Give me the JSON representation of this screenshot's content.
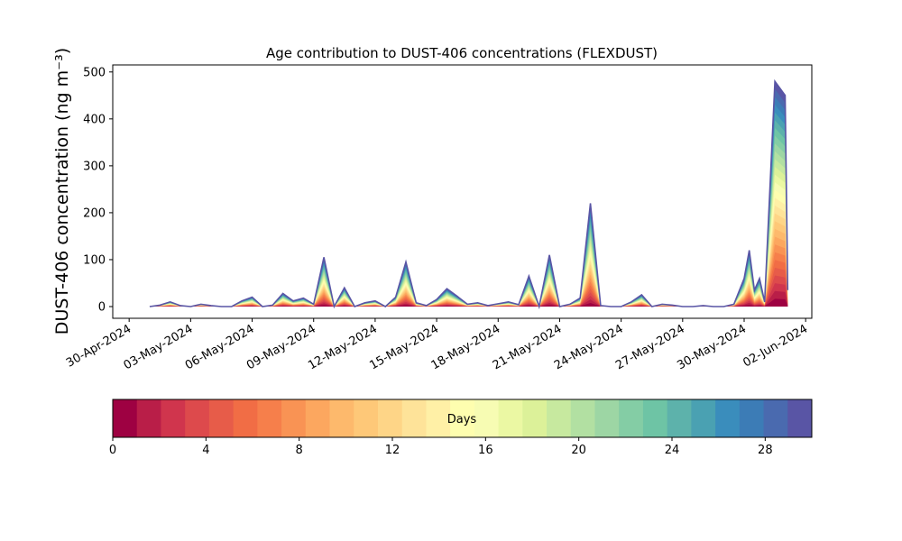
{
  "chart_data": {
    "type": "area",
    "title": "Age contribution to DUST-406 concentrations (FLEXDUST)",
    "ylabel": "DUST-406 concentration (ng m⁻³)",
    "xlabel": "",
    "xlim": [
      "2024-04-30",
      "2024-06-02"
    ],
    "ylim": [
      -25,
      515
    ],
    "x_tick_labels": [
      "30-Apr-2024",
      "03-May-2024",
      "06-May-2024",
      "09-May-2024",
      "12-May-2024",
      "15-May-2024",
      "18-May-2024",
      "21-May-2024",
      "24-May-2024",
      "27-May-2024",
      "30-May-2024",
      "02-Jun-2024"
    ],
    "y_ticks": [
      0,
      100,
      200,
      300,
      400,
      500
    ],
    "grid": false,
    "series_note_colorbar": "Days",
    "colorbar": {
      "label": "Days",
      "range": [
        0,
        30
      ],
      "ticks": [
        0,
        4,
        8,
        12,
        16,
        20,
        24,
        28
      ],
      "colors": [
        "#9e0142",
        "#b91e48",
        "#d0354d",
        "#dd4a4c",
        "#e75c49",
        "#f16d45",
        "#f67f4b",
        "#f99354",
        "#fca75f",
        "#fdb96c",
        "#fec878",
        "#fed587",
        "#fee399",
        "#fff0a6",
        "#fefeaf",
        "#f7fcb3",
        "#ebf8a3",
        "#dcf199",
        "#c7e99f",
        "#b2e0a2",
        "#9dd6a4",
        "#84cda5",
        "#6ec4a5",
        "#5db2ab",
        "#4aa1b2",
        "#3a8dbc",
        "#3c7cb6",
        "#4a6aaf",
        "#5955a5"
      ]
    },
    "x": [
      "2024-05-01",
      "2024-05-01 12:00",
      "2024-05-02",
      "2024-05-02 12:00",
      "2024-05-03",
      "2024-05-03 12:00",
      "2024-05-04",
      "2024-05-04 12:00",
      "2024-05-05",
      "2024-05-05 12:00",
      "2024-05-06",
      "2024-05-06 12:00",
      "2024-05-07",
      "2024-05-07 12:00",
      "2024-05-08",
      "2024-05-08 12:00",
      "2024-05-09",
      "2024-05-09 12:00",
      "2024-05-10",
      "2024-05-10 12:00",
      "2024-05-11",
      "2024-05-11 12:00",
      "2024-05-12",
      "2024-05-12 12:00",
      "2024-05-13",
      "2024-05-13 12:00",
      "2024-05-14",
      "2024-05-14 12:00",
      "2024-05-15",
      "2024-05-15 12:00",
      "2024-05-16",
      "2024-05-16 12:00",
      "2024-05-17",
      "2024-05-17 12:00",
      "2024-05-18",
      "2024-05-18 12:00",
      "2024-05-19",
      "2024-05-19 12:00",
      "2024-05-20",
      "2024-05-20 12:00",
      "2024-05-21",
      "2024-05-21 12:00",
      "2024-05-22",
      "2024-05-22 12:00",
      "2024-05-23",
      "2024-05-23 12:00",
      "2024-05-24",
      "2024-05-24 12:00",
      "2024-05-25",
      "2024-05-25 12:00",
      "2024-05-26",
      "2024-05-26 12:00",
      "2024-05-27",
      "2024-05-27 12:00",
      "2024-05-28",
      "2024-05-28 12:00",
      "2024-05-29",
      "2024-05-29 12:00",
      "2024-05-30",
      "2024-05-30 06:00",
      "2024-05-30 12:00",
      "2024-05-30 18:00",
      "2024-05-31",
      "2024-05-31 12:00",
      "2024-06-01",
      "2024-06-01 03:00"
    ],
    "total": [
      0,
      3,
      10,
      2,
      0,
      5,
      2,
      0,
      0,
      12,
      20,
      0,
      3,
      28,
      12,
      18,
      5,
      105,
      0,
      40,
      0,
      8,
      12,
      0,
      20,
      95,
      8,
      2,
      15,
      38,
      22,
      5,
      8,
      2,
      6,
      10,
      4,
      65,
      0,
      110,
      0,
      5,
      18,
      220,
      2,
      0,
      0,
      10,
      25,
      0,
      5,
      3,
      0,
      0,
      2,
      0,
      0,
      5,
      60,
      120,
      35,
      60,
      10,
      480,
      450,
      35
    ]
  }
}
